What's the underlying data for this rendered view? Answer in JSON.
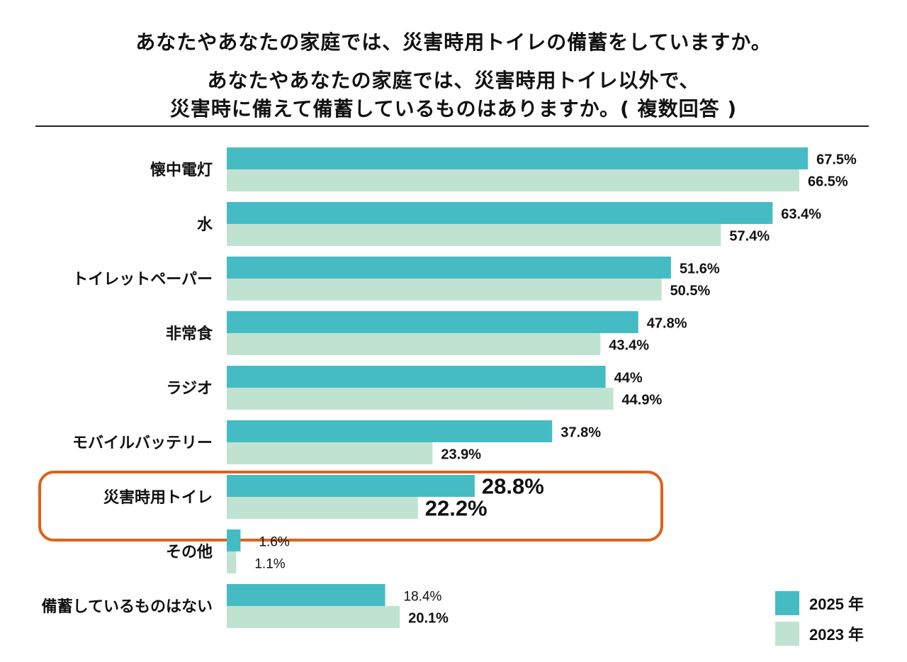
{
  "titles": {
    "line1": "あなたやあなたの家庭では、災害時用トイレの備蓄をしていますか。",
    "line2": "あなたやあなたの家庭では、災害時用トイレ以外で、",
    "line3": "災害時に備えて備蓄しているものはありますか。( 複数回答 )"
  },
  "colors": {
    "series_2025": "#45bcc4",
    "series_2023": "#bfe3d0",
    "highlight": "#e0601a"
  },
  "chart_data": {
    "type": "bar",
    "orientation": "horizontal",
    "title": "あなたやあなたの家庭では、災害時用トイレ以外で、災害時に備えて備蓄しているものはありますか。( 複数回答 )",
    "xlabel": "",
    "ylabel": "",
    "xlim": [
      0,
      75
    ],
    "grid": false,
    "legend_position": "bottom-right",
    "categories": [
      "懐中電灯",
      "水",
      "トイレットペーパー",
      "非常食",
      "ラジオ",
      "モバイルバッテリー",
      "災害時用トイレ",
      "その他",
      "備蓄しているものはない"
    ],
    "series": [
      {
        "name": "2025 年",
        "values": [
          67.5,
          63.4,
          51.6,
          47.8,
          44,
          37.8,
          28.8,
          1.6,
          18.4
        ],
        "labels": [
          "67.5%",
          "63.4%",
          "51.6%",
          "47.8%",
          "44%",
          "37.8%",
          "28.8%",
          "1.6%",
          "18.4%"
        ]
      },
      {
        "name": "2023 年",
        "values": [
          66.5,
          57.4,
          50.5,
          43.4,
          44.9,
          23.9,
          22.2,
          1.1,
          20.1
        ],
        "labels": [
          "66.5%",
          "57.4%",
          "50.5%",
          "43.4%",
          "44.9%",
          "23.9%",
          "22.2%",
          "1.1%",
          "20.1%"
        ]
      }
    ],
    "highlighted_category": "災害時用トイレ"
  },
  "legend": [
    {
      "label": "2025 年"
    },
    {
      "label": "2023 年"
    }
  ]
}
